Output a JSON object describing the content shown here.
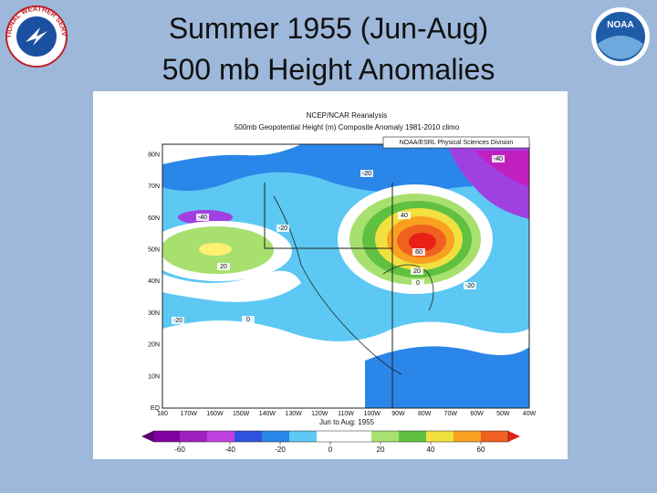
{
  "slide": {
    "title_line1": "Summer 1955 (Jun-Aug)",
    "title_line2": "500 mb Height Anomalies",
    "left_logo": "NATIONAL WEATHER SERVICE",
    "right_logo": "NOAA"
  },
  "map": {
    "header": [
      "NCEP/NCAR Reanalysis",
      "500mb Geopotential Height (m) Composite Anomaly 1981-2010 climo"
    ],
    "credit": "NOAA/ESRL Physical Sciences Division",
    "lat_labels": [
      "EQ",
      "10N",
      "20N",
      "30N",
      "40N",
      "50N",
      "60N",
      "70N",
      "80N"
    ],
    "lon_labels": [
      "180",
      "170W",
      "160W",
      "150W",
      "140W",
      "130W",
      "120W",
      "110W",
      "100W",
      "90W",
      "80W",
      "70W",
      "60W",
      "50W",
      "40W"
    ],
    "footer": "Jun to Aug: 1955",
    "contour_labels": [
      -40,
      20,
      -20,
      -20,
      40,
      60,
      20,
      0,
      -20,
      -40,
      -20,
      0
    ]
  },
  "colorbar": {
    "ticks": [
      -60,
      -40,
      -20,
      0,
      20,
      40,
      60
    ]
  }
}
